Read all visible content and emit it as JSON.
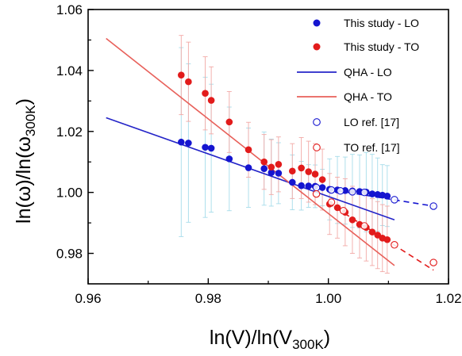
{
  "chart_data": {
    "type": "scatter",
    "xlabel": {
      "main": "ln(V)/ln(V",
      "sub": "300K",
      "close": ")"
    },
    "ylabel": {
      "main": "ln(ω)/ln(ω",
      "sub": "300K",
      "close": ")"
    },
    "xlim": [
      0.96,
      1.02
    ],
    "ylim": [
      0.97,
      1.06
    ],
    "xticks": [
      0.96,
      0.98,
      1.0,
      1.02
    ],
    "xtick_labels": [
      "0.96",
      "0.98",
      "1.00",
      "1.02"
    ],
    "yticks": [
      0.98,
      1.0,
      1.02,
      1.04,
      1.06
    ],
    "ytick_labels": [
      "0.98",
      "1.00",
      "1.02",
      "1.04",
      "1.06"
    ],
    "grid": false,
    "legend_position": "top-right",
    "colors": {
      "lo": "#1515d0",
      "to": "#e21b1b",
      "lo_line": "#2424c8",
      "to_line": "#e8605a",
      "error_lo": "#a6dcea",
      "error_to": "#f2a9a6"
    },
    "series": [
      {
        "name": "This study - LO",
        "kind": "marker-filled",
        "color": "#1515d0",
        "points": [
          {
            "x": 0.9755,
            "y": 1.0165,
            "err": 0.031
          },
          {
            "x": 0.9767,
            "y": 1.0162,
            "err": 0.026
          },
          {
            "x": 0.9795,
            "y": 1.0148,
            "err": 0.023
          },
          {
            "x": 0.9805,
            "y": 1.0145,
            "err": 0.021
          },
          {
            "x": 0.9835,
            "y": 1.011,
            "err": 0.017
          },
          {
            "x": 0.9867,
            "y": 1.0081,
            "err": 0.013
          },
          {
            "x": 0.9893,
            "y": 1.0078,
            "err": 0.012
          },
          {
            "x": 0.9905,
            "y": 1.0065,
            "err": 0.011
          },
          {
            "x": 0.9917,
            "y": 1.0063,
            "err": 0.01
          },
          {
            "x": 0.994,
            "y": 1.0033,
            "err": 0.009
          },
          {
            "x": 0.9955,
            "y": 1.0022,
            "err": 0.008
          },
          {
            "x": 0.9967,
            "y": 1.0021,
            "err": 0.007
          },
          {
            "x": 0.9978,
            "y": 1.002,
            "err": 0.007
          },
          {
            "x": 0.999,
            "y": 1.0016,
            "err": 0.006
          },
          {
            "x": 1.0002,
            "y": 1.001,
            "err": 0.01
          },
          {
            "x": 1.0015,
            "y": 1.0008,
            "err": 0.011
          },
          {
            "x": 1.0028,
            "y": 1.0006,
            "err": 0.011
          },
          {
            "x": 1.004,
            "y": 1.0005,
            "err": 0.012
          },
          {
            "x": 1.0052,
            "y": 1.0003,
            "err": 0.012
          },
          {
            "x": 1.0063,
            "y": 1.0001,
            "err": 0.013
          },
          {
            "x": 1.0073,
            "y": 0.9995,
            "err": 0.013
          },
          {
            "x": 1.0082,
            "y": 0.9993,
            "err": 0.012
          },
          {
            "x": 1.009,
            "y": 0.9991,
            "err": 0.01
          },
          {
            "x": 1.0098,
            "y": 0.9988,
            "err": 0.01
          }
        ]
      },
      {
        "name": "This study - TO",
        "kind": "marker-filled",
        "color": "#e21b1b",
        "points": [
          {
            "x": 0.9755,
            "y": 1.0385,
            "err": 0.013
          },
          {
            "x": 0.9767,
            "y": 1.0363,
            "err": 0.013
          },
          {
            "x": 0.9795,
            "y": 1.0325,
            "err": 0.012
          },
          {
            "x": 0.9805,
            "y": 1.0302,
            "err": 0.011
          },
          {
            "x": 0.9835,
            "y": 1.0231,
            "err": 0.01
          },
          {
            "x": 0.9867,
            "y": 1.014,
            "err": 0.009
          },
          {
            "x": 0.9893,
            "y": 1.01,
            "err": 0.009
          },
          {
            "x": 0.9905,
            "y": 1.0083,
            "err": 0.009
          },
          {
            "x": 0.9917,
            "y": 1.0092,
            "err": 0.009
          },
          {
            "x": 0.994,
            "y": 1.007,
            "err": 0.009
          },
          {
            "x": 0.9955,
            "y": 1.008,
            "err": 0.01
          },
          {
            "x": 0.9967,
            "y": 1.0068,
            "err": 0.01
          },
          {
            "x": 0.9978,
            "y": 1.006,
            "err": 0.01
          },
          {
            "x": 0.999,
            "y": 1.0042,
            "err": 0.01
          },
          {
            "x": 1.0002,
            "y": 0.9962,
            "err": 0.01
          },
          {
            "x": 1.0015,
            "y": 0.995,
            "err": 0.01
          },
          {
            "x": 1.0028,
            "y": 0.9935,
            "err": 0.011
          },
          {
            "x": 1.004,
            "y": 0.991,
            "err": 0.011
          },
          {
            "x": 1.0052,
            "y": 0.9895,
            "err": 0.011
          },
          {
            "x": 1.0063,
            "y": 0.9885,
            "err": 0.011
          },
          {
            "x": 1.0073,
            "y": 0.987,
            "err": 0.011
          },
          {
            "x": 1.0082,
            "y": 0.986,
            "err": 0.011
          },
          {
            "x": 1.009,
            "y": 0.985,
            "err": 0.011
          },
          {
            "x": 1.0098,
            "y": 0.9845,
            "err": 0.011
          }
        ]
      },
      {
        "name": "QHA - LO",
        "kind": "line",
        "color": "#2424c8",
        "x": [
          0.963,
          1.011
        ],
        "y": [
          1.0245,
          0.991
        ]
      },
      {
        "name": "QHA - TO",
        "kind": "line",
        "color": "#e8605a",
        "x": [
          0.963,
          1.011
        ],
        "y": [
          1.0505,
          0.976
        ]
      },
      {
        "name": "LO ref. [17]",
        "kind": "marker-open",
        "color": "#1515d0",
        "points": [
          {
            "x": 0.998,
            "y": 1.0016
          },
          {
            "x": 1.0005,
            "y": 1.0008
          },
          {
            "x": 1.002,
            "y": 1.0005
          },
          {
            "x": 1.004,
            "y": 1.0002
          },
          {
            "x": 1.006,
            "y": 1.0
          },
          {
            "x": 1.011,
            "y": 0.9976
          },
          {
            "x": 1.0175,
            "y": 0.9955
          }
        ],
        "dashed_fit": {
          "x": [
            1.0,
            1.0175
          ],
          "y": [
            1.001,
            0.9955
          ]
        }
      },
      {
        "name": "TO ref. [17]",
        "kind": "marker-open",
        "color": "#e21b1b",
        "points": [
          {
            "x": 0.998,
            "y": 0.9995
          },
          {
            "x": 1.0005,
            "y": 0.9968
          },
          {
            "x": 1.0025,
            "y": 0.994
          },
          {
            "x": 1.006,
            "y": 0.989
          },
          {
            "x": 1.011,
            "y": 0.9828
          },
          {
            "x": 1.0175,
            "y": 0.977
          }
        ],
        "dashed_fit": {
          "x": [
            1.0,
            1.0175
          ],
          "y": [
            0.9965,
            0.9745
          ]
        }
      }
    ]
  }
}
